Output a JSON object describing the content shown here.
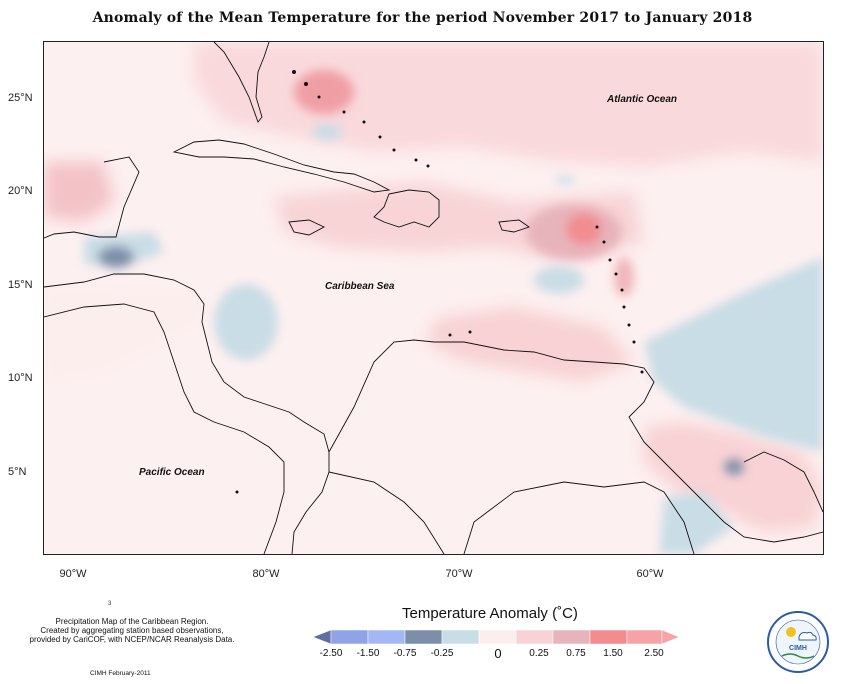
{
  "title": "Anomaly of the Mean Temperature for the period November 2017 to January 2018",
  "map": {
    "y_axis_labels": [
      "25°N",
      "20°N",
      "15°N",
      "10°N",
      "5°N"
    ],
    "x_axis_labels": [
      "90°W",
      "80°W",
      "70°W",
      "60°W"
    ],
    "region_labels": {
      "atlantic": "Atlantic Ocean",
      "caribbean": "Caribbean Sea",
      "pacific": "Pacific Ocean"
    }
  },
  "legend": {
    "title": "Temperature Anomaly (˚C)",
    "tick_labels": [
      "-2.50",
      "-1.50",
      "-0.75",
      "-0.25",
      "0",
      "0.25",
      "0.75",
      "1.50",
      "2.50"
    ],
    "colors": [
      "#5f6f9f",
      "#8fa3e6",
      "#a3b7f5",
      "#7d8fa8",
      "#c9dde6",
      "#fdeeee",
      "#f8d2d4",
      "#e7b4bb",
      "#f28c8f",
      "#f5a3a6"
    ]
  },
  "footnote": {
    "lines": [
      "Precipitation Map of the Caribbean Region.",
      "Created by aggregating station based observations,",
      "provided by CariCOF, with NCEP/NCAR Reanalysis Data."
    ],
    "credit": "CIMH February-2011",
    "stray_mark": "3"
  },
  "logo": {
    "text": "CIMH"
  }
}
